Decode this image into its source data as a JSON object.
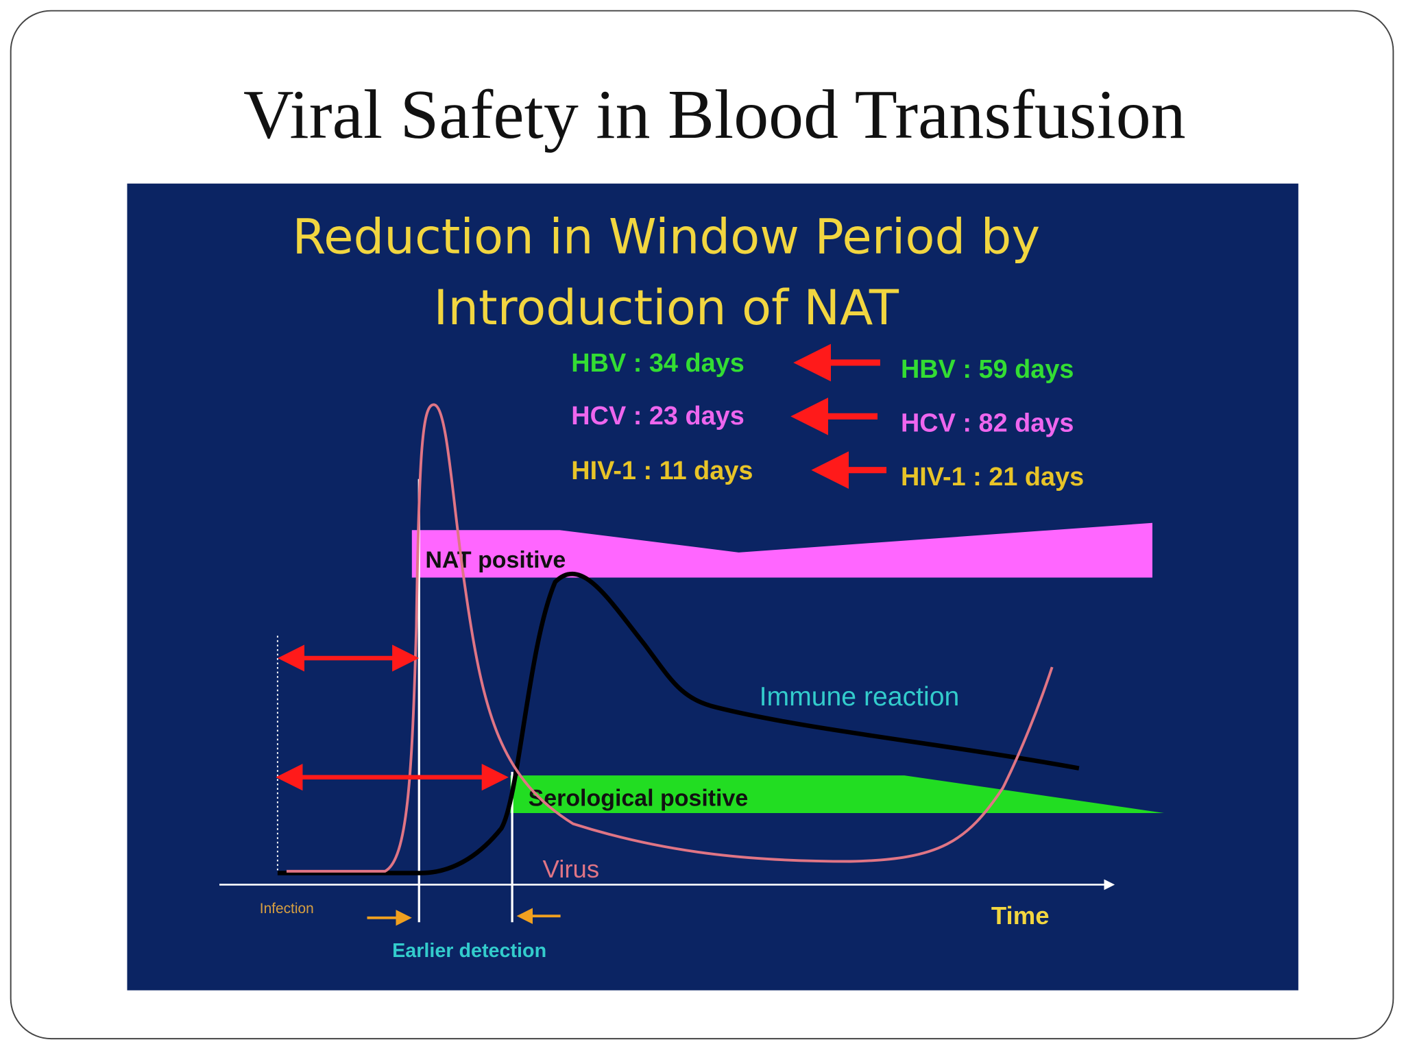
{
  "title": "Viral Safety in Blood Transfusion",
  "figure": {
    "heading": [
      "Reduction in Window Period by",
      "Introduction of NAT"
    ],
    "window_periods": [
      {
        "after": "HBV : 34 days",
        "before": "HBV : 59 days"
      },
      {
        "after": "HCV : 23 days",
        "before": "HCV : 82 days"
      },
      {
        "after": "HIV-1 : 11 days",
        "before": "HIV-1 : 21 days"
      }
    ],
    "labels": {
      "nat": "NAT positive",
      "serological": "Serological positive",
      "immune": "Immune reaction",
      "virus": "Virus",
      "infection": "Infection",
      "time": "Time",
      "earlier": "Earlier detection"
    }
  }
}
